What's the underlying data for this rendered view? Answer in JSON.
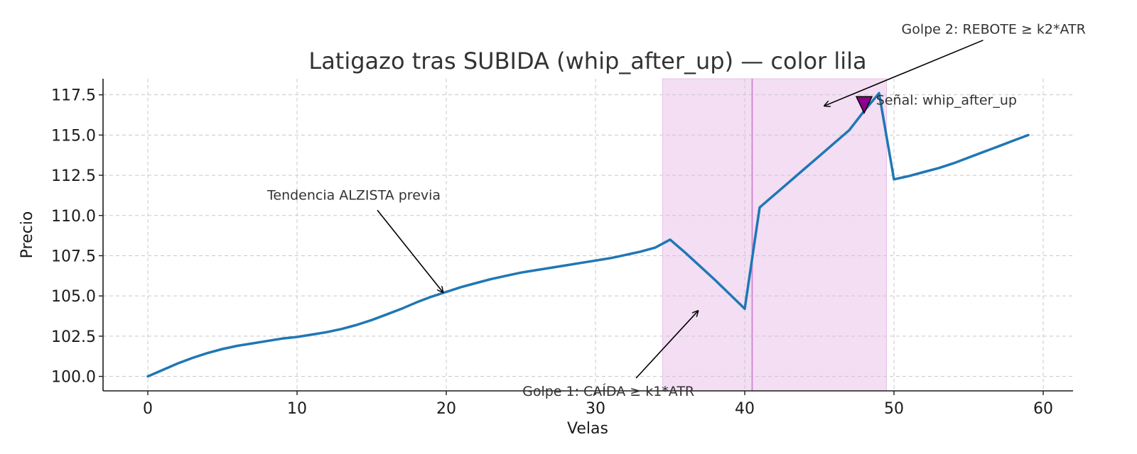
{
  "chart_data": {
    "type": "line",
    "title": "Latigazo tras SUBIDA (whip_after_up) — color lila",
    "xlabel": "Velas",
    "ylabel": "Precio",
    "xlim": [
      -3,
      62
    ],
    "ylim": [
      99.1,
      118.5
    ],
    "grid": true,
    "xticks": [
      0,
      10,
      20,
      30,
      40,
      50,
      60
    ],
    "yticks": [
      100.0,
      102.5,
      105.0,
      107.5,
      110.0,
      112.5,
      115.0,
      117.5
    ],
    "ytick_labels": [
      "100.0",
      "102.5",
      "105.0",
      "107.5",
      "110.0",
      "112.5",
      "115.0",
      "117.5"
    ],
    "series": [
      {
        "color": "#1f77b4",
        "x": [
          0,
          1,
          2,
          3,
          4,
          5,
          6,
          7,
          8,
          9,
          10,
          11,
          12,
          13,
          14,
          15,
          16,
          17,
          18,
          19,
          20,
          21,
          22,
          23,
          24,
          25,
          26,
          27,
          28,
          29,
          30,
          31,
          32,
          33,
          34,
          35,
          36,
          37,
          38,
          39,
          40,
          41,
          42,
          43,
          44,
          45,
          46,
          47,
          48,
          49,
          50,
          51,
          52,
          53,
          54,
          55,
          56,
          57,
          58,
          59
        ],
        "y": [
          100.0,
          100.4,
          100.8,
          101.15,
          101.45,
          101.7,
          101.9,
          102.05,
          102.2,
          102.35,
          102.45,
          102.6,
          102.75,
          102.95,
          103.2,
          103.5,
          103.85,
          104.2,
          104.6,
          104.95,
          105.25,
          105.55,
          105.8,
          106.05,
          106.25,
          106.45,
          106.6,
          106.75,
          106.9,
          107.05,
          107.2,
          107.35,
          107.55,
          107.75,
          108.0,
          108.5,
          107.7,
          106.85,
          106.0,
          105.1,
          104.2,
          110.5,
          111.3,
          112.1,
          112.9,
          113.7,
          114.5,
          115.3,
          116.5,
          117.6,
          112.25,
          112.45,
          112.7,
          112.95,
          113.25,
          113.6,
          113.95,
          114.3,
          114.65,
          115.0
        ]
      }
    ],
    "shaded_regions": [
      {
        "x0": 34.5,
        "x1": 40.5,
        "color": "#dda0dd",
        "opacity": 0.35
      },
      {
        "x0": 40.5,
        "x1": 49.5,
        "color": "#dda0dd",
        "opacity": 0.35
      }
    ],
    "vertical_lines": [
      {
        "x": 40.5,
        "color": "#d08cd0"
      }
    ],
    "marker": {
      "x": 48,
      "y": 116.9,
      "shape": "triangle-down",
      "color": "#8b008b"
    },
    "annotations": [
      {
        "text": "Tendencia ALZISTA previa",
        "text_x": 8,
        "text_y": 111.3,
        "arrow_x": 19.8,
        "arrow_y": 105.2
      },
      {
        "text": "Golpe 1: CAÍDA ≥ k1*ATR",
        "text_x": 25.1,
        "text_y": 99.1,
        "arrow_x": 36.9,
        "arrow_y": 104.1
      },
      {
        "text": "Golpe 2: REBOTE ≥ k2*ATR",
        "text_x": 50.5,
        "text_y": 121.6,
        "arrow_x": 45.3,
        "arrow_y": 116.8
      },
      {
        "text": "Señal: whip_after_up",
        "text_x": 48.8,
        "text_y": 117.2
      }
    ]
  }
}
